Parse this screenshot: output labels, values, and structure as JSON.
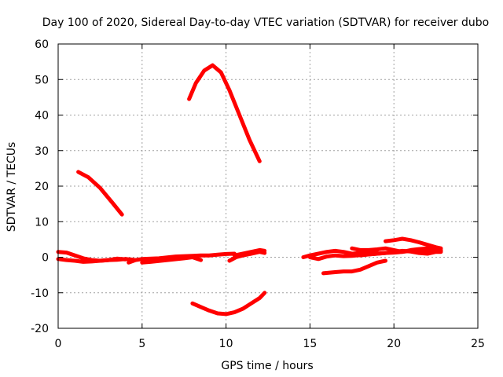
{
  "chart_data": {
    "type": "line",
    "title": "Day 100 of 2020, Sidereal Day-to-day VTEC variation (SDTVAR) for receiver dubo",
    "xlabel": "GPS time / hours",
    "ylabel": "SDTVAR / TECUs",
    "xlim": [
      0,
      25
    ],
    "ylim": [
      -20,
      60
    ],
    "xticks": [
      "0",
      "5",
      "10",
      "15",
      "20",
      "25"
    ],
    "yticks": [
      "-20",
      "-10",
      "0",
      "10",
      "20",
      "30",
      "40",
      "50",
      "60"
    ],
    "grid": true,
    "color": "#ff0000",
    "series": [
      {
        "x": [
          0.0,
          0.5,
          1.0,
          1.5,
          2.0,
          2.5,
          3.0,
          3.5,
          4.0
        ],
        "y": [
          1.5,
          1.3,
          0.5,
          -0.3,
          -0.8,
          -1.0,
          -0.8,
          -0.4,
          -0.6
        ]
      },
      {
        "x": [
          0.0,
          0.5,
          1.0,
          1.5,
          2.0,
          2.5,
          3.0,
          3.5,
          4.0,
          4.5
        ],
        "y": [
          -0.5,
          -0.8,
          -1.0,
          -1.3,
          -1.2,
          -1.0,
          -0.8,
          -0.7,
          -0.5,
          -0.7
        ]
      },
      {
        "x": [
          1.2,
          1.8,
          2.5,
          3.2,
          3.8
        ],
        "y": [
          24.0,
          22.5,
          19.5,
          15.5,
          12.0
        ]
      },
      {
        "x": [
          4.2,
          4.6,
          5.0,
          6.0,
          7.0,
          8.0,
          8.5,
          9.0,
          9.5,
          10.0,
          10.5
        ],
        "y": [
          -1.5,
          -0.8,
          -0.5,
          -0.3,
          0.2,
          0.4,
          0.5,
          0.5,
          0.7,
          0.9,
          1.0
        ]
      },
      {
        "x": [
          5.0,
          5.5,
          6.5,
          7.5,
          8.0,
          8.5
        ],
        "y": [
          -1.5,
          -1.3,
          -0.8,
          -0.3,
          0.0,
          -0.8
        ]
      },
      {
        "x": [
          7.8,
          8.2,
          8.7,
          9.2,
          9.7,
          10.2,
          10.8,
          11.4,
          12.0
        ],
        "y": [
          44.5,
          49.0,
          52.5,
          54.0,
          52.0,
          47.0,
          40.0,
          33.0,
          27.0
        ]
      },
      {
        "x": [
          10.2,
          10.6,
          11.0,
          11.5,
          12.0,
          12.3
        ],
        "y": [
          -1.0,
          0.0,
          0.5,
          1.0,
          1.5,
          1.2
        ]
      },
      {
        "x": [
          10.5,
          11.0,
          11.5,
          12.0,
          12.3
        ],
        "y": [
          0.5,
          1.0,
          1.5,
          2.0,
          1.8
        ]
      },
      {
        "x": [
          8.0,
          8.5,
          9.0,
          9.5,
          10.0,
          10.5,
          11.0,
          11.5,
          12.0,
          12.3
        ],
        "y": [
          -13.0,
          -14.0,
          -15.0,
          -15.8,
          -16.0,
          -15.5,
          -14.5,
          -13.0,
          -11.5,
          -10.0
        ]
      },
      {
        "x": [
          14.6,
          15.0,
          15.5,
          16.0,
          16.5,
          17.0,
          17.5,
          18.0,
          18.5,
          19.0
        ],
        "y": [
          0.0,
          0.5,
          1.0,
          1.5,
          1.8,
          1.5,
          1.0,
          1.2,
          1.5,
          2.0
        ]
      },
      {
        "x": [
          15.0,
          15.5,
          16.0,
          16.5,
          17.0,
          17.5,
          18.0,
          18.5,
          19.0,
          19.5,
          20.0,
          20.5,
          21.0,
          21.5,
          22.0,
          22.5,
          22.8
        ],
        "y": [
          0.0,
          -0.5,
          0.2,
          0.5,
          0.3,
          0.4,
          0.6,
          0.8,
          1.0,
          1.2,
          1.3,
          1.5,
          1.8,
          2.0,
          2.1,
          2.0,
          1.8
        ]
      },
      {
        "x": [
          17.5,
          18.0,
          18.5,
          19.0,
          19.5,
          20.0,
          20.5,
          21.0,
          21.5,
          22.0,
          22.5,
          22.8
        ],
        "y": [
          2.5,
          2.0,
          2.0,
          2.2,
          2.5,
          2.0,
          1.5,
          2.0,
          2.3,
          2.5,
          2.2,
          2.0
        ]
      },
      {
        "x": [
          15.8,
          16.5,
          17.0,
          17.5,
          18.0,
          18.5,
          19.0,
          19.5
        ],
        "y": [
          -4.5,
          -4.2,
          -4.0,
          -4.0,
          -3.5,
          -2.5,
          -1.5,
          -1.0
        ]
      },
      {
        "x": [
          19.5,
          20.0,
          20.5,
          21.0,
          21.5,
          22.0,
          22.5,
          22.8
        ],
        "y": [
          4.5,
          4.8,
          5.2,
          4.8,
          4.2,
          3.5,
          2.8,
          2.5
        ]
      },
      {
        "x": [
          18.0,
          18.5,
          19.0,
          19.5,
          20.0,
          20.5,
          21.0,
          21.5,
          22.0,
          22.5,
          22.8
        ],
        "y": [
          0.5,
          0.8,
          1.0,
          1.2,
          1.5,
          1.8,
          1.6,
          1.2,
          1.0,
          1.5,
          1.5
        ]
      }
    ]
  }
}
